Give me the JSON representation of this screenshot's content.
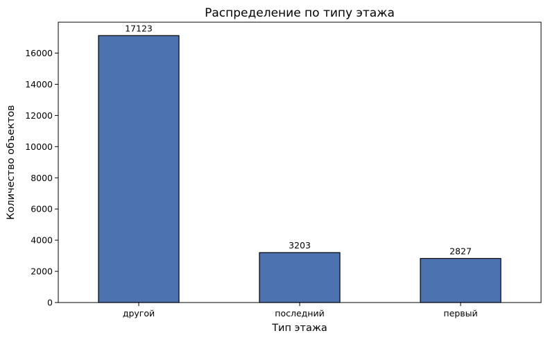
{
  "chart_data": {
    "type": "bar",
    "title": "Распределение по типу этажа",
    "xlabel": "Тип этажа",
    "ylabel": "Количество объектов",
    "categories": [
      "другой",
      "последний",
      "первый"
    ],
    "values": [
      17123,
      3203,
      2827
    ],
    "data_labels": [
      "17123",
      "3203",
      "2827"
    ],
    "ylim": [
      0,
      17981
    ],
    "yticks": [
      0,
      2000,
      4000,
      6000,
      8000,
      10000,
      12000,
      14000,
      16000
    ],
    "ytick_labels": [
      "0",
      "2000",
      "4000",
      "6000",
      "8000",
      "10000",
      "12000",
      "14000",
      "16000"
    ],
    "grid": false,
    "legend": "none",
    "bar_color": "#4c72b0",
    "edge_color": "#000000"
  }
}
